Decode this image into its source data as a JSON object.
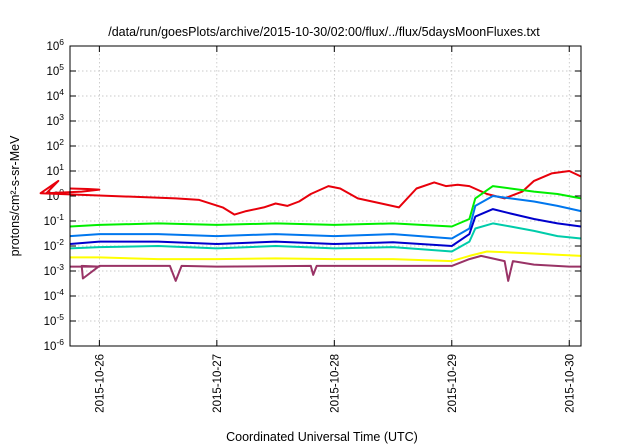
{
  "chart_data": {
    "type": "line",
    "title": "/data/run/goesPlots/archive/2015-10-30/02:00/flux/../flux/5daysMoonFluxes.txt",
    "xlabel": "Coordinated Universal Time (UTC)",
    "ylabel": "protons/cm²-s-sr-MeV",
    "yscale": "log",
    "ylim_exponent": [
      -6,
      6
    ],
    "y_tick_labels": [
      "10-6",
      "10-5",
      "10-4",
      "10-3",
      "10-2",
      "10-1",
      "100",
      "101",
      "102",
      "103",
      "104",
      "105",
      "106"
    ],
    "xlim_days": [
      -0.25,
      4.1
    ],
    "x_ticks": [
      {
        "day": 0,
        "label": "2015-10-26"
      },
      {
        "day": 1,
        "label": "2015-10-27"
      },
      {
        "day": 2,
        "label": "2015-10-28"
      },
      {
        "day": 3,
        "label": "2015-10-29"
      },
      {
        "day": 4,
        "label": "2015-10-30"
      }
    ],
    "grid": true,
    "series": [
      {
        "color": "#e8000b",
        "x": [
          -0.25,
          -0.1,
          0.0,
          -0.15,
          -0.45,
          -0.35,
          -0.5,
          0.65,
          0.85,
          1.05,
          1.15,
          1.25,
          1.4,
          1.5,
          1.6,
          1.7,
          1.8,
          1.95,
          2.05,
          2.2,
          2.4,
          2.55,
          2.7,
          2.85,
          2.95,
          3.05,
          3.15,
          3.3,
          3.45,
          3.6,
          3.7,
          3.85,
          4.0,
          4.1
        ],
        "y": [
          2.0,
          1.9,
          1.8,
          1.5,
          1.3,
          4.0,
          1.3,
          0.8,
          0.7,
          0.35,
          0.18,
          0.25,
          0.35,
          0.5,
          0.4,
          0.6,
          1.2,
          2.5,
          2.0,
          0.8,
          0.5,
          0.35,
          2.0,
          3.5,
          2.5,
          2.8,
          2.5,
          1.2,
          0.8,
          1.5,
          4.0,
          8.0,
          10.0,
          6.0
        ]
      },
      {
        "color": "#00ee00",
        "x": [
          -0.25,
          0.0,
          0.5,
          1.0,
          1.5,
          2.0,
          2.5,
          3.0,
          3.15,
          3.2,
          3.35,
          3.5,
          3.7,
          3.9,
          4.1
        ],
        "y": [
          0.06,
          0.07,
          0.08,
          0.07,
          0.08,
          0.07,
          0.08,
          0.06,
          0.12,
          0.8,
          2.5,
          2.0,
          1.5,
          1.2,
          0.8
        ]
      },
      {
        "color": "#0077ee",
        "x": [
          -0.25,
          0.0,
          0.5,
          1.0,
          1.5,
          2.0,
          2.5,
          3.0,
          3.15,
          3.2,
          3.35,
          3.5,
          3.7,
          3.9,
          4.1
        ],
        "y": [
          0.025,
          0.03,
          0.03,
          0.025,
          0.03,
          0.025,
          0.03,
          0.02,
          0.05,
          0.4,
          1.0,
          0.8,
          0.6,
          0.4,
          0.25
        ]
      },
      {
        "color": "#0000cc",
        "x": [
          -0.25,
          0.0,
          0.5,
          1.0,
          1.5,
          2.0,
          2.5,
          3.0,
          3.15,
          3.2,
          3.35,
          3.5,
          3.7,
          3.9,
          4.1
        ],
        "y": [
          0.012,
          0.015,
          0.015,
          0.012,
          0.015,
          0.012,
          0.014,
          0.01,
          0.03,
          0.15,
          0.3,
          0.2,
          0.12,
          0.08,
          0.06
        ]
      },
      {
        "color": "#00ccaa",
        "x": [
          -0.25,
          0.0,
          0.5,
          1.0,
          1.5,
          2.0,
          2.5,
          3.0,
          3.15,
          3.2,
          3.35,
          3.5,
          3.7,
          3.9,
          4.1
        ],
        "y": [
          0.008,
          0.009,
          0.01,
          0.008,
          0.01,
          0.008,
          0.009,
          0.006,
          0.015,
          0.05,
          0.08,
          0.06,
          0.04,
          0.025,
          0.02
        ]
      },
      {
        "color": "#ffff00",
        "x": [
          -0.25,
          0.0,
          0.5,
          1.0,
          1.5,
          2.0,
          2.5,
          3.0,
          3.15,
          3.3,
          3.5,
          3.7,
          3.9,
          4.1
        ],
        "y": [
          0.0035,
          0.0035,
          0.003,
          0.003,
          0.0032,
          0.003,
          0.003,
          0.0025,
          0.004,
          0.006,
          0.0055,
          0.005,
          0.0045,
          0.004
        ]
      },
      {
        "color": "#993366",
        "x": [
          -0.25,
          0.0,
          -0.15,
          -0.14,
          0.0,
          0.6,
          0.65,
          0.7,
          1.0,
          1.8,
          1.82,
          1.85,
          2.0,
          3.0,
          3.15,
          3.25,
          3.45,
          3.48,
          3.52,
          3.7,
          4.0,
          4.1
        ],
        "y": [
          0.0015,
          0.0015,
          0.0016,
          0.0005,
          0.0016,
          0.0016,
          0.0004,
          0.0016,
          0.0015,
          0.0016,
          0.0007,
          0.0016,
          0.0016,
          0.0016,
          0.003,
          0.004,
          0.0025,
          0.0004,
          0.0025,
          0.0018,
          0.0015,
          0.0015
        ]
      }
    ]
  }
}
